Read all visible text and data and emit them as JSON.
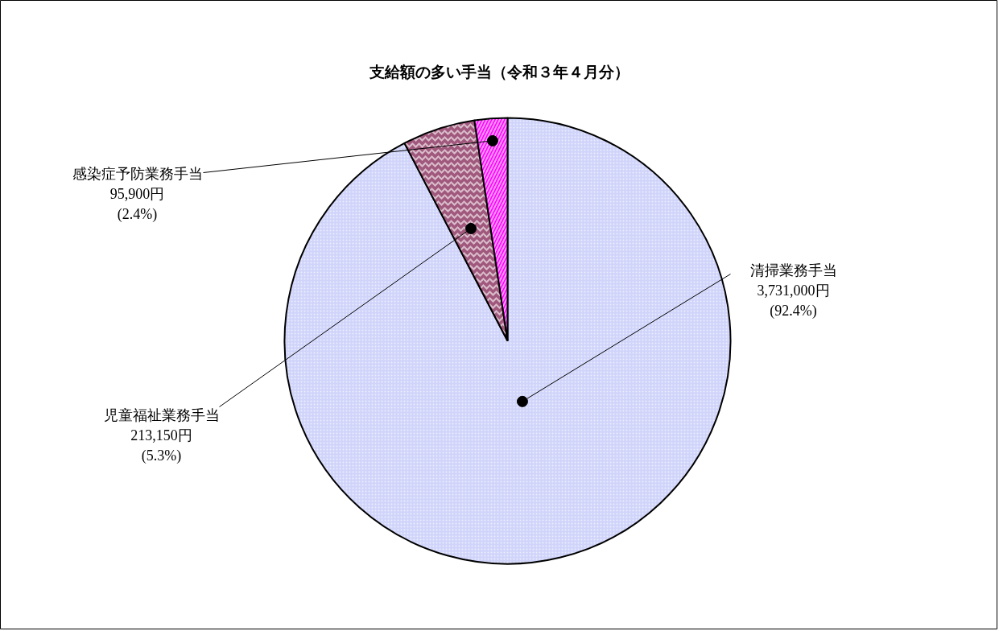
{
  "chart_data": {
    "type": "pie",
    "title": "支給額の多い手当（令和３年４月分）",
    "categories": [
      "清掃業務手当",
      "児童福祉業務手当",
      "感染症予防業務手当"
    ],
    "values": [
      3731000,
      213150,
      95900
    ],
    "colors": [
      "#d0d4fa",
      "#a0587c",
      "#ff00ff"
    ],
    "value_labels": [
      "3,731,000円\n(92.4%)",
      "213,150円\n(5.3%)",
      "95,900円\n(2.4%)"
    ]
  }
}
